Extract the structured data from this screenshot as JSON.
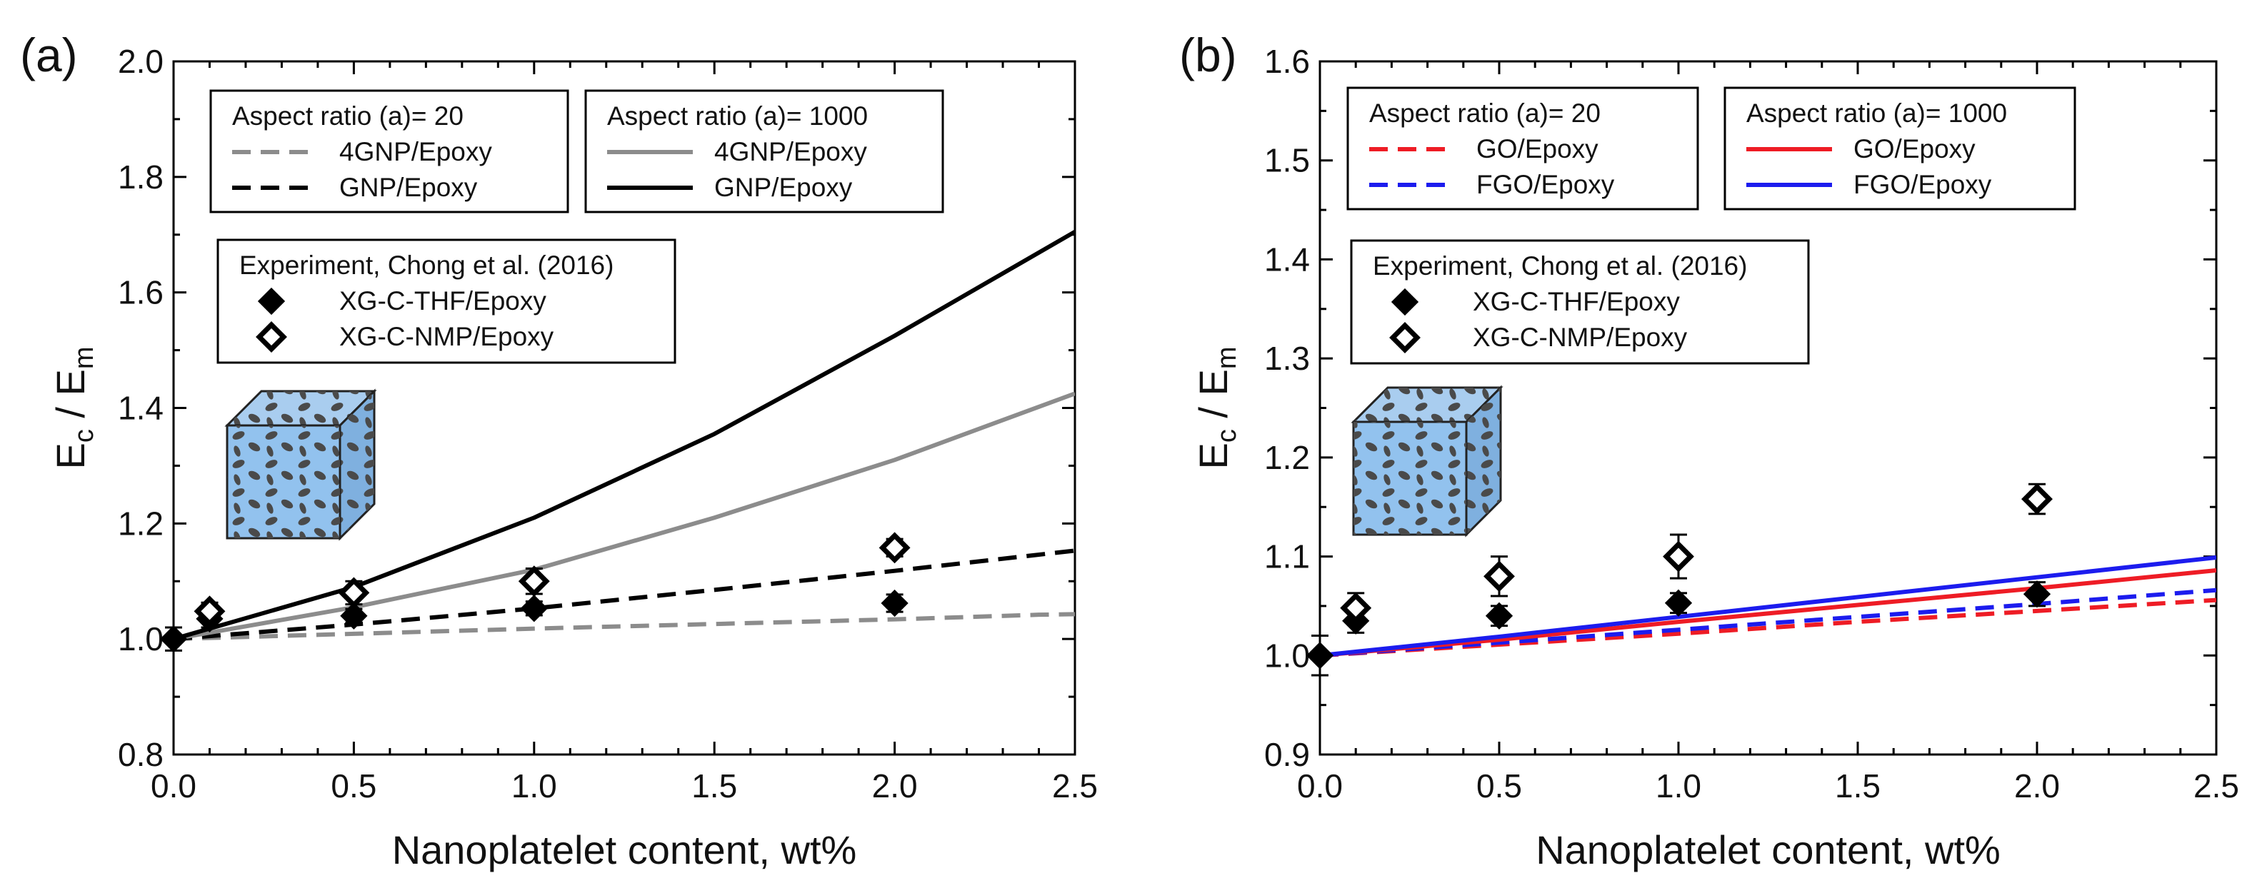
{
  "chart_data": [
    {
      "type": "line",
      "panel_label": "(a)",
      "xlabel": "Nanoplatelet content, wt%",
      "ylabel_main": "E",
      "ylabel_sub1": "c",
      "ylabel_sep": " / ",
      "ylabel_sub2": "m",
      "xlim": [
        0,
        2.5
      ],
      "ylim": [
        0.8,
        2.0
      ],
      "xticks": [
        "0.0",
        "0.5",
        "1.0",
        "1.5",
        "2.0",
        "2.5"
      ],
      "yticks": [
        "0.8",
        "1.0",
        "1.2",
        "1.4",
        "1.6",
        "1.8",
        "2.0"
      ],
      "legend_groups": [
        {
          "title": "Aspect ratio (a)= 20",
          "entries": [
            "4GNP/Epoxy",
            "GNP/Epoxy"
          ]
        },
        {
          "title": "Aspect ratio (a)= 1000",
          "entries": [
            "4GNP/Epoxy",
            "GNP/Epoxy"
          ]
        },
        {
          "title": "Experiment, Chong et al. (2016)",
          "entries": [
            "XG-C-THF/Epoxy",
            "XG-C-NMP/Epoxy"
          ]
        }
      ],
      "series": [
        {
          "name": "4GNP/Epoxy (a=20)",
          "color": "#8c8c8c",
          "dash": true,
          "x": [
            0,
            0.5,
            1.0,
            1.5,
            2.0,
            2.4,
            2.5
          ],
          "y": [
            1.0,
            1.009,
            1.018,
            1.026,
            1.034,
            1.042,
            1.043
          ]
        },
        {
          "name": "GNP/Epoxy (a=20)",
          "color": "#000000",
          "dash": true,
          "x": [
            0,
            0.5,
            1.0,
            1.5,
            2.0,
            2.5
          ],
          "y": [
            1.0,
            1.025,
            1.053,
            1.085,
            1.118,
            1.153
          ]
        },
        {
          "name": "4GNP/Epoxy (a=1000)",
          "color": "#8c8c8c",
          "dash": false,
          "x": [
            0,
            0.5,
            1.0,
            1.5,
            2.0,
            2.5
          ],
          "y": [
            1.0,
            1.055,
            1.12,
            1.21,
            1.31,
            1.425
          ]
        },
        {
          "name": "GNP/Epoxy (a=1000)",
          "color": "#000000",
          "dash": false,
          "x": [
            0,
            0.5,
            1.0,
            1.5,
            2.0,
            2.5
          ],
          "y": [
            1.0,
            1.09,
            1.21,
            1.355,
            1.525,
            1.705
          ]
        }
      ],
      "experiment": [
        {
          "name": "XG-C-THF/Epoxy",
          "filled": true,
          "points": [
            {
              "x": 0,
              "y": 1.0,
              "err": 0.02
            },
            {
              "x": 0.1,
              "y": 1.035,
              "err": 0.015
            },
            {
              "x": 0.5,
              "y": 1.04,
              "err": 0.012
            },
            {
              "x": 1.0,
              "y": 1.053,
              "err": 0.012
            },
            {
              "x": 2.0,
              "y": 1.062,
              "err": 0.015
            }
          ]
        },
        {
          "name": "XG-C-NMP/Epoxy",
          "filled": false,
          "points": [
            {
              "x": 0.1,
              "y": 1.048,
              "err": 0.015
            },
            {
              "x": 0.5,
              "y": 1.08,
              "err": 0.02
            },
            {
              "x": 1.0,
              "y": 1.1,
              "err": 0.022
            },
            {
              "x": 2.0,
              "y": 1.158,
              "err": 0.015
            }
          ]
        }
      ]
    },
    {
      "type": "line",
      "panel_label": "(b)",
      "xlabel": "Nanoplatelet content, wt%",
      "ylabel_main": "E",
      "ylabel_sub1": "c",
      "ylabel_sep": " / ",
      "ylabel_sub2": "m",
      "xlim": [
        0,
        2.5
      ],
      "ylim": [
        0.9,
        1.6
      ],
      "xticks": [
        "0.0",
        "0.5",
        "1.0",
        "1.5",
        "2.0",
        "2.5"
      ],
      "yticks": [
        "0.9",
        "1.0",
        "1.1",
        "1.2",
        "1.3",
        "1.4",
        "1.5",
        "1.6"
      ],
      "legend_groups": [
        {
          "title": "Aspect ratio (a)= 20",
          "entries": [
            "GO/Epoxy",
            "FGO/Epoxy"
          ]
        },
        {
          "title": "Aspect ratio (a)= 1000",
          "entries": [
            "GO/Epoxy",
            "FGO/Epoxy"
          ]
        },
        {
          "title": "Experiment, Chong et al. (2016)",
          "entries": [
            "XG-C-THF/Epoxy",
            "XG-C-NMP/Epoxy"
          ]
        }
      ],
      "series": [
        {
          "name": "GO/Epoxy (a=20)",
          "color": "#ee1c25",
          "dash": true,
          "x": [
            0,
            0.5,
            1.0,
            1.5,
            2.0,
            2.5
          ],
          "y": [
            1.0,
            1.011,
            1.022,
            1.034,
            1.045,
            1.056
          ]
        },
        {
          "name": "FGO/Epoxy (a=20)",
          "color": "#1c1cee",
          "dash": true,
          "x": [
            0,
            0.5,
            1.0,
            1.5,
            2.0,
            2.5
          ],
          "y": [
            1.0,
            1.013,
            1.026,
            1.039,
            1.052,
            1.066
          ]
        },
        {
          "name": "GO/Epoxy (a=1000)",
          "color": "#ee1c25",
          "dash": false,
          "x": [
            0,
            0.5,
            1.0,
            1.5,
            2.0,
            2.5
          ],
          "y": [
            1.0,
            1.016,
            1.034,
            1.051,
            1.068,
            1.086
          ]
        },
        {
          "name": "FGO/Epoxy (a=1000)",
          "color": "#1c1cee",
          "dash": false,
          "x": [
            0,
            0.5,
            1.0,
            1.5,
            2.0,
            2.5
          ],
          "y": [
            1.0,
            1.019,
            1.039,
            1.059,
            1.079,
            1.099
          ]
        }
      ],
      "experiment": [
        {
          "name": "XG-C-THF/Epoxy",
          "filled": true,
          "points": [
            {
              "x": 0,
              "y": 1.0,
              "err": 0.02
            },
            {
              "x": 0.1,
              "y": 1.035,
              "err": 0.012
            },
            {
              "x": 0.5,
              "y": 1.04,
              "err": 0.01
            },
            {
              "x": 1.0,
              "y": 1.053,
              "err": 0.01
            },
            {
              "x": 2.0,
              "y": 1.062,
              "err": 0.012
            }
          ]
        },
        {
          "name": "XG-C-NMP/Epoxy",
          "filled": false,
          "points": [
            {
              "x": 0.1,
              "y": 1.048,
              "err": 0.015
            },
            {
              "x": 0.5,
              "y": 1.08,
              "err": 0.02
            },
            {
              "x": 1.0,
              "y": 1.1,
              "err": 0.022
            },
            {
              "x": 2.0,
              "y": 1.158,
              "err": 0.015
            }
          ]
        }
      ]
    }
  ]
}
